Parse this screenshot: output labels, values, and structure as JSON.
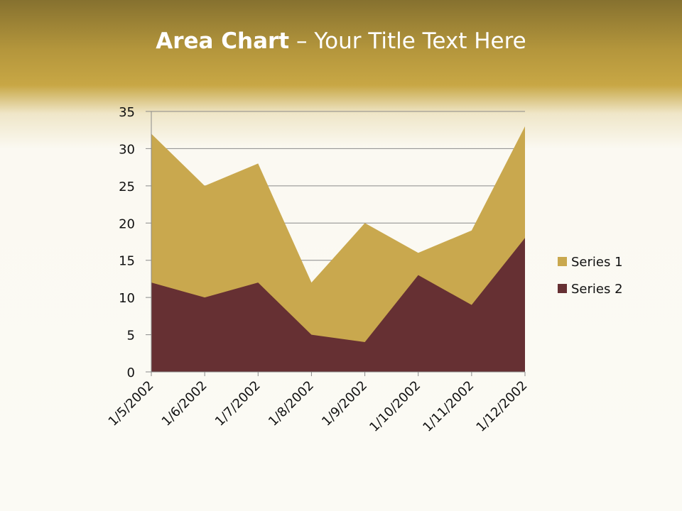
{
  "title": {
    "bold": "Area Chart",
    "rest": " – Your Title Text Here"
  },
  "colors": {
    "series1": "#c9a84e",
    "series2": "#663033"
  },
  "chart_data": {
    "type": "area",
    "categories": [
      "1/5/2002",
      "1/6/2002",
      "1/7/2002",
      "1/8/2002",
      "1/9/2002",
      "1/10/2002",
      "1/11/2002",
      "1/12/2002"
    ],
    "series": [
      {
        "name": "Series 1",
        "values": [
          32,
          25,
          28,
          12,
          20,
          16,
          19,
          33
        ]
      },
      {
        "name": "Series 2",
        "values": [
          12,
          10,
          12,
          5,
          4,
          13,
          9,
          18
        ]
      }
    ],
    "ylim": [
      0,
      35
    ],
    "yticks": [
      0,
      5,
      10,
      15,
      20,
      25,
      30,
      35
    ],
    "grid": true,
    "legend": "right"
  }
}
